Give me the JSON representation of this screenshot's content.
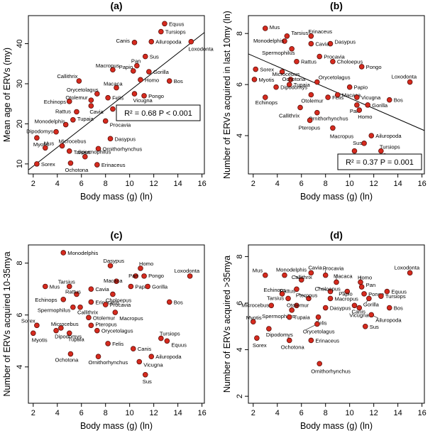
{
  "chart_data": [
    {
      "type": "scatter",
      "panel": "(a)",
      "xlabel": "Body mass (g)  (ln)",
      "ylabel": "Mean age of ERVs (my)",
      "xlim": [
        1.6,
        16.2
      ],
      "ylim": [
        7.5,
        47
      ],
      "xticks": [
        2,
        4,
        6,
        8,
        10,
        12,
        14,
        16
      ],
      "yticks": [
        10,
        20,
        30,
        40
      ],
      "fit": {
        "x0": 1.6,
        "y0": 8.5,
        "x1": 16.2,
        "y1": 42.8
      },
      "stat": {
        "label": "R² = 0.68  P < 0.001"
      },
      "points": [
        {
          "label": "Equus",
          "x": 12.9,
          "y": 45.0
        },
        {
          "label": "Tursiops",
          "x": 12.6,
          "y": 43.0
        },
        {
          "label": "Canis",
          "x": 10.4,
          "y": 40.3
        },
        {
          "label": "Ailuropoda",
          "x": 11.8,
          "y": 40.5
        },
        {
          "label": "Loxodonta",
          "x": 15.1,
          "y": 40.5
        },
        {
          "label": "Sus",
          "x": 11.3,
          "y": 36.8
        },
        {
          "label": "Macropus",
          "x": 8.6,
          "y": 33.5
        },
        {
          "label": "Pan",
          "x": 10.6,
          "y": 34.5
        },
        {
          "label": "Papio",
          "x": 10.3,
          "y": 33.2
        },
        {
          "label": "Gorilla",
          "x": 11.6,
          "y": 33.0
        },
        {
          "label": "Callithrix",
          "x": 5.8,
          "y": 30.7
        },
        {
          "label": "Homo",
          "x": 10.9,
          "y": 31.0
        },
        {
          "label": "Bos",
          "x": 13.3,
          "y": 30.7
        },
        {
          "label": "Macaca",
          "x": 8.9,
          "y": 29.0
        },
        {
          "label": "Vicugna",
          "x": 10.4,
          "y": 27.5
        },
        {
          "label": "Pongo",
          "x": 11.2,
          "y": 27.0
        },
        {
          "label": "Orycetolagus",
          "x": 7.3,
          "y": 27.5
        },
        {
          "label": "Felis",
          "x": 8.2,
          "y": 26.5
        },
        {
          "label": "Otolemur",
          "x": 6.8,
          "y": 25.9
        },
        {
          "label": "Echinops",
          "x": 5.0,
          "y": 25.6
        },
        {
          "label": "Cavia",
          "x": 6.8,
          "y": 24.5
        },
        {
          "label": "Choloepus",
          "x": 8.6,
          "y": 23.7
        },
        {
          "label": "Rattus",
          "x": 5.6,
          "y": 23.0
        },
        {
          "label": "Tupaia",
          "x": 5.3,
          "y": 21.0
        },
        {
          "label": "Procavia",
          "x": 8.0,
          "y": 20.7
        },
        {
          "label": "Monodelphis",
          "x": 4.7,
          "y": 19.8
        },
        {
          "label": "Dipodomys",
          "x": 3.9,
          "y": 18.0
        },
        {
          "label": "Myotis",
          "x": 2.3,
          "y": 16.5
        },
        {
          "label": "Mus",
          "x": 3.0,
          "y": 14.0
        },
        {
          "label": "Dasypus",
          "x": 8.4,
          "y": 16.3
        },
        {
          "label": "Microcebus",
          "x": 4.4,
          "y": 14.5
        },
        {
          "label": "Tarsius",
          "x": 5.0,
          "y": 13.2
        },
        {
          "label": "Ornithorhynchus",
          "x": 7.4,
          "y": 13.8
        },
        {
          "label": "Spermophilus",
          "x": 6.3,
          "y": 11.8
        },
        {
          "label": "Sorex",
          "x": 2.3,
          "y": 10.0
        },
        {
          "label": "Ochotona",
          "x": 5.1,
          "y": 10.2
        },
        {
          "label": "Erinaceus",
          "x": 7.3,
          "y": 9.8
        }
      ]
    },
    {
      "type": "scatter",
      "panel": "(b)",
      "xlabel": "Body mass (g)  (ln)",
      "ylabel": "Number of ERVs acquired in last 10my (ln)",
      "xlim": [
        1.6,
        16.2
      ],
      "ylim": [
        2.5,
        8.7
      ],
      "xticks": [
        2,
        4,
        6,
        8,
        10,
        12,
        14,
        16
      ],
      "yticks": [
        4,
        6,
        8
      ],
      "fit": {
        "x0": 1.6,
        "y0": 7.2,
        "x1": 16.2,
        "y1": 4.2
      },
      "stat": {
        "label": "R² = 0.37  P = 0.001"
      },
      "points": [
        {
          "label": "Mus",
          "x": 3.0,
          "y": 8.2
        },
        {
          "label": "Monodelphis",
          "x": 4.6,
          "y": 7.7
        },
        {
          "label": "Tarsius",
          "x": 4.8,
          "y": 7.9
        },
        {
          "label": "Erinaceus",
          "x": 6.8,
          "y": 7.9
        },
        {
          "label": "Spermophilus",
          "x": 5.2,
          "y": 7.4
        },
        {
          "label": "Dasypus",
          "x": 8.4,
          "y": 7.6
        },
        {
          "label": "Cavia",
          "x": 6.8,
          "y": 7.6
        },
        {
          "label": "Procavia",
          "x": 7.5,
          "y": 7.1
        },
        {
          "label": "Rattus",
          "x": 5.6,
          "y": 6.9
        },
        {
          "label": "Choloepus",
          "x": 8.6,
          "y": 6.9
        },
        {
          "label": "Pongo",
          "x": 11.0,
          "y": 6.7
        },
        {
          "label": "Sorex",
          "x": 2.2,
          "y": 6.6
        },
        {
          "label": "Microcebus",
          "x": 4.4,
          "y": 6.5
        },
        {
          "label": "Myotis",
          "x": 2.1,
          "y": 6.2
        },
        {
          "label": "Ochotona",
          "x": 5.1,
          "y": 6.2
        },
        {
          "label": "Tupaia",
          "x": 5.0,
          "y": 6.0
        },
        {
          "label": "Loxodonta",
          "x": 15.0,
          "y": 6.1
        },
        {
          "label": "Orycetolagus",
          "x": 7.3,
          "y": 6.1
        },
        {
          "label": "Dipodomys",
          "x": 3.9,
          "y": 5.9
        },
        {
          "label": "Papio",
          "x": 10.0,
          "y": 5.9
        },
        {
          "label": "Echinops",
          "x": 3.0,
          "y": 5.5
        },
        {
          "label": "Otolemur",
          "x": 6.8,
          "y": 5.6
        },
        {
          "label": "Felis",
          "x": 8.2,
          "y": 5.5
        },
        {
          "label": "Macaca",
          "x": 9.0,
          "y": 5.6
        },
        {
          "label": "Vicugna",
          "x": 10.6,
          "y": 5.5
        },
        {
          "label": "Bos",
          "x": 13.3,
          "y": 5.4
        },
        {
          "label": "Pan",
          "x": 10.6,
          "y": 5.2
        },
        {
          "label": "Gorilla",
          "x": 11.5,
          "y": 5.2
        },
        {
          "label": "Callithrix",
          "x": 5.9,
          "y": 5.1
        },
        {
          "label": "Ornithorhynchus",
          "x": 7.3,
          "y": 4.9
        },
        {
          "label": "Homo",
          "x": 10.8,
          "y": 5.0
        },
        {
          "label": "Pteropus",
          "x": 6.7,
          "y": 4.6
        },
        {
          "label": "Macropus",
          "x": 8.6,
          "y": 4.3
        },
        {
          "label": "Ailuropoda",
          "x": 11.8,
          "y": 4.0
        },
        {
          "label": "Sus",
          "x": 11.2,
          "y": 3.7
        },
        {
          "label": "Tursiops",
          "x": 12.6,
          "y": 3.4
        },
        {
          "label": "Canis",
          "x": 10.4,
          "y": 3.4
        },
        {
          "label": "Equus",
          "x": 12.9,
          "y": 3.2
        }
      ]
    },
    {
      "type": "scatter",
      "panel": "(c)",
      "xlabel": "Body mass (g)  (ln)",
      "ylabel": "Number of ERVs acquired 10-35mya",
      "xlim": [
        1.6,
        16.2
      ],
      "ylim": [
        2.6,
        8.7
      ],
      "xticks": [
        2,
        4,
        6,
        8,
        10,
        12,
        14,
        16
      ],
      "yticks": [
        4,
        6,
        8
      ],
      "points": [
        {
          "label": "Monodelphis",
          "x": 4.5,
          "y": 8.4
        },
        {
          "label": "Dasypus",
          "x": 8.4,
          "y": 7.9
        },
        {
          "label": "Homo",
          "x": 10.9,
          "y": 7.8
        },
        {
          "label": "Loxodonta",
          "x": 15.0,
          "y": 7.5
        },
        {
          "label": "Pan",
          "x": 10.5,
          "y": 7.5
        },
        {
          "label": "Pongo",
          "x": 11.2,
          "y": 7.5
        },
        {
          "label": "Macaca",
          "x": 8.9,
          "y": 7.3
        },
        {
          "label": "Mus",
          "x": 3.0,
          "y": 7.1
        },
        {
          "label": "Tarsius",
          "x": 5.0,
          "y": 7.1
        },
        {
          "label": "Cavia",
          "x": 6.8,
          "y": 7.0
        },
        {
          "label": "Papio",
          "x": 10.1,
          "y": 7.1
        },
        {
          "label": "Gorilla",
          "x": 11.5,
          "y": 7.1
        },
        {
          "label": "Rattus",
          "x": 5.6,
          "y": 6.8
        },
        {
          "label": "Choloepus",
          "x": 8.6,
          "y": 6.8
        },
        {
          "label": "Echinops",
          "x": 4.5,
          "y": 6.6
        },
        {
          "label": "Erinaceus",
          "x": 6.8,
          "y": 6.5
        },
        {
          "label": "Bos",
          "x": 13.3,
          "y": 6.5
        },
        {
          "label": "Procavia",
          "x": 8.0,
          "y": 6.4
        },
        {
          "label": "Spermophilus",
          "x": 5.3,
          "y": 6.3
        },
        {
          "label": "Callithrix",
          "x": 5.9,
          "y": 6.3
        },
        {
          "label": "Macropus",
          "x": 8.8,
          "y": 6.1
        },
        {
          "label": "Sorex",
          "x": 2.3,
          "y": 5.6
        },
        {
          "label": "Otolemur",
          "x": 6.6,
          "y": 5.9
        },
        {
          "label": "Microcebus",
          "x": 4.3,
          "y": 5.5
        },
        {
          "label": "Myotis",
          "x": 2.0,
          "y": 5.3
        },
        {
          "label": "Pteropus",
          "x": 6.8,
          "y": 5.6
        },
        {
          "label": "Tupaia",
          "x": 5.0,
          "y": 5.3
        },
        {
          "label": "Dipodomys",
          "x": 3.9,
          "y": 5.4
        },
        {
          "label": "Orycetolagus",
          "x": 7.3,
          "y": 5.4
        },
        {
          "label": "Tursiops",
          "x": 12.6,
          "y": 5.1
        },
        {
          "label": "Equus",
          "x": 13.1,
          "y": 5.0
        },
        {
          "label": "Felis",
          "x": 8.2,
          "y": 4.9
        },
        {
          "label": "Canis",
          "x": 10.3,
          "y": 4.7
        },
        {
          "label": "Ailuropoda",
          "x": 11.8,
          "y": 4.4
        },
        {
          "label": "Ochotona",
          "x": 5.1,
          "y": 4.5
        },
        {
          "label": "Ornithorhynchus",
          "x": 7.4,
          "y": 4.4
        },
        {
          "label": "Vicugna",
          "x": 10.8,
          "y": 4.2
        },
        {
          "label": "Sus",
          "x": 11.3,
          "y": 3.7
        }
      ]
    },
    {
      "type": "scatter",
      "panel": "(d)",
      "xlabel": "Body mass (g)  (ln)",
      "ylabel": "Number of ERVs acquired >35mya",
      "xlim": [
        1.6,
        16.2
      ],
      "ylim": [
        1.7,
        8.5
      ],
      "xticks": [
        2,
        4,
        6,
        8,
        10,
        12,
        14,
        16
      ],
      "yticks": [
        2,
        4,
        6,
        8
      ],
      "points": [
        {
          "label": "Mus",
          "x": 3.0,
          "y": 7.2
        },
        {
          "label": "Monodelphis",
          "x": 4.6,
          "y": 7.2
        },
        {
          "label": "Cavia",
          "x": 6.8,
          "y": 7.3
        },
        {
          "label": "Procavia",
          "x": 8.0,
          "y": 7.2
        },
        {
          "label": "Loxodonta",
          "x": 15.0,
          "y": 7.3
        },
        {
          "label": "Callithrix",
          "x": 6.0,
          "y": 7.0
        },
        {
          "label": "Macaca",
          "x": 8.9,
          "y": 6.9
        },
        {
          "label": "Homo",
          "x": 10.9,
          "y": 6.9
        },
        {
          "label": "Pan",
          "x": 11.0,
          "y": 6.7
        },
        {
          "label": "Rattus",
          "x": 5.6,
          "y": 6.6
        },
        {
          "label": "Choloepus",
          "x": 8.4,
          "y": 6.5
        },
        {
          "label": "Papio",
          "x": 9.8,
          "y": 6.5
        },
        {
          "label": "Pongo",
          "x": 11.2,
          "y": 6.4
        },
        {
          "label": "Equus",
          "x": 13.1,
          "y": 6.5
        },
        {
          "label": "Echinops",
          "x": 4.4,
          "y": 6.4
        },
        {
          "label": "Pteropus",
          "x": 6.6,
          "y": 6.2
        },
        {
          "label": "Macropus",
          "x": 8.4,
          "y": 6.2
        },
        {
          "label": "Gorilla",
          "x": 11.6,
          "y": 6.2
        },
        {
          "label": "Tursiops",
          "x": 12.6,
          "y": 6.3
        },
        {
          "label": "Tarsius",
          "x": 4.9,
          "y": 6.2
        },
        {
          "label": "Microcebus",
          "x": 3.5,
          "y": 5.9
        },
        {
          "label": "Otolemur",
          "x": 5.6,
          "y": 5.9
        },
        {
          "label": "Dasypus",
          "x": 8.0,
          "y": 5.8
        },
        {
          "label": "Canis",
          "x": 10.4,
          "y": 5.9
        },
        {
          "label": "Vicugna",
          "x": 10.8,
          "y": 5.8
        },
        {
          "label": "Bos",
          "x": 13.3,
          "y": 5.8
        },
        {
          "label": "Spermophilus",
          "x": 5.2,
          "y": 5.7
        },
        {
          "label": "Ailuropoda",
          "x": 11.8,
          "y": 5.5
        },
        {
          "label": "Myotis",
          "x": 2.0,
          "y": 5.2
        },
        {
          "label": "Tupaia",
          "x": 5.0,
          "y": 5.4
        },
        {
          "label": "Felis",
          "x": 7.4,
          "y": 5.4
        },
        {
          "label": "Orycetolagus",
          "x": 7.3,
          "y": 5.1
        },
        {
          "label": "Sus",
          "x": 11.3,
          "y": 5.0
        },
        {
          "label": "Dipodomys",
          "x": 3.3,
          "y": 4.9
        },
        {
          "label": "Sorex",
          "x": 2.3,
          "y": 4.5
        },
        {
          "label": "Ochotona",
          "x": 5.0,
          "y": 4.4
        },
        {
          "label": "Erinaceus",
          "x": 6.8,
          "y": 4.4
        },
        {
          "label": "Ornithorhynchus",
          "x": 7.5,
          "y": 3.4
        }
      ]
    }
  ]
}
